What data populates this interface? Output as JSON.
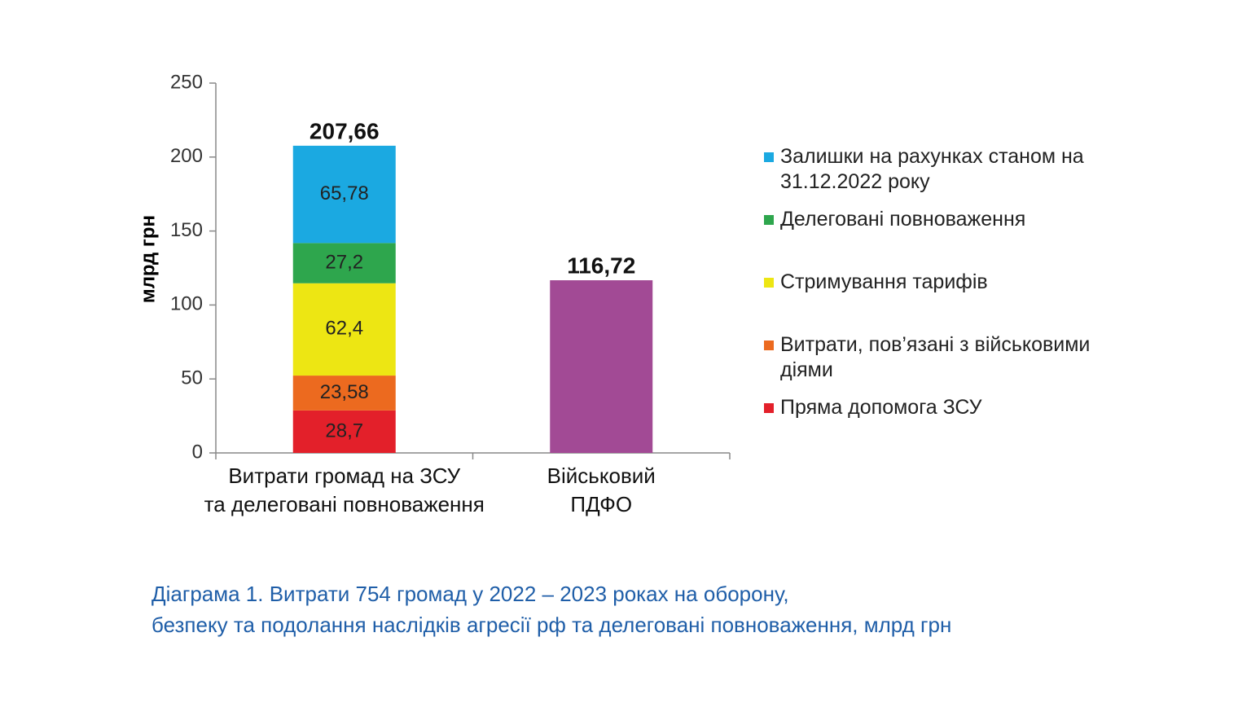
{
  "chart_data": {
    "type": "stacked-bar",
    "title": [
      "Діаграма 1.  Витрати 754 громад у 2022 – 2023 роках на оборону,",
      "безпеку та подолання наслідків агресії рф та делеговані повноваження, млрд грн"
    ],
    "y_label": "млрд грн",
    "categories": [
      [
        "Витрати громад на ЗСУ",
        "та делеговані повноваження"
      ],
      [
        "Військовий",
        "ПДФО"
      ]
    ],
    "series": [
      {
        "name": "Залишки на рахунках станом на 31.12.2022 року",
        "color": "#1ba9e1",
        "values": [
          65.78,
          null
        ],
        "value_labels": [
          "65,78",
          null
        ]
      },
      {
        "name": "Делеговані повноваження",
        "color": "#2ea64d",
        "values": [
          27.2,
          null
        ],
        "value_labels": [
          "27,2",
          null
        ]
      },
      {
        "name": "Стримування тарифів",
        "color": "#ede613",
        "values": [
          62.4,
          null
        ],
        "value_labels": [
          "62,4",
          null
        ]
      },
      {
        "name": "Витрати, пов’язані з військовими діями",
        "color": "#ec6a1f",
        "values": [
          23.58,
          null
        ],
        "value_labels": [
          "23,58",
          null
        ]
      },
      {
        "name": "Пряма допомога ЗСУ",
        "color": "#e3202a",
        "values": [
          28.7,
          null
        ],
        "value_labels": [
          "28,7",
          null
        ]
      },
      {
        "color": "#a24a95",
        "values": [
          null,
          116.72
        ]
      }
    ],
    "totals": [
      207.66,
      116.72
    ],
    "total_labels": [
      "207,66",
      "116,72"
    ],
    "ylim": [
      0,
      250
    ],
    "yticks": [
      0,
      50,
      100,
      150,
      200,
      250
    ]
  }
}
